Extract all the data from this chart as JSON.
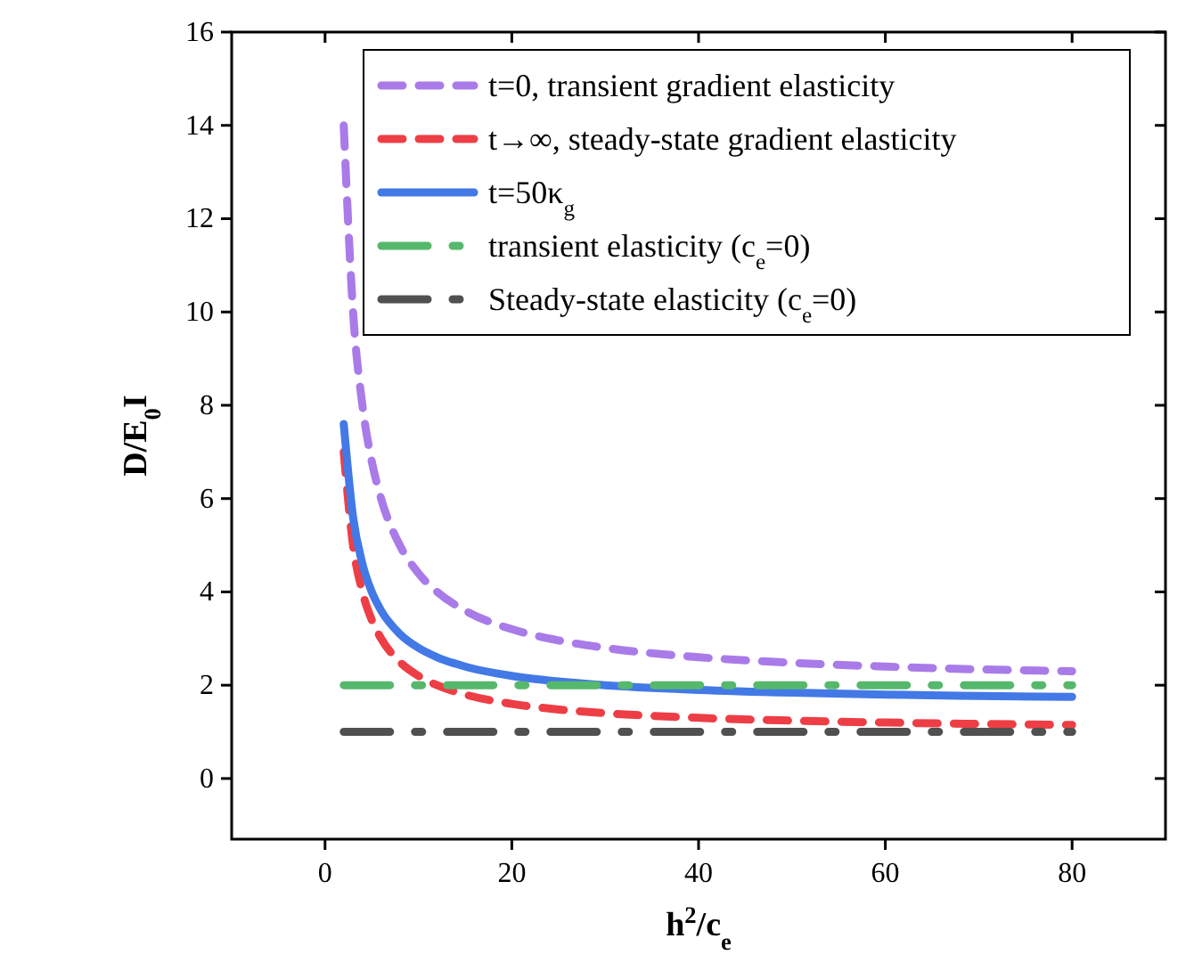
{
  "chart_data": {
    "type": "line",
    "xlabel": "h$^{2}$/c$_{e}$",
    "ylabel": "D/E$_{0}$I",
    "xlim": [
      -10,
      90
    ],
    "ylim": [
      -1.3,
      16
    ],
    "xticks": [
      0,
      20,
      40,
      60,
      80
    ],
    "yticks": [
      0,
      2,
      4,
      6,
      8,
      10,
      12,
      14,
      16
    ],
    "x": [
      2,
      3,
      4,
      5,
      6,
      8,
      10,
      12,
      15,
      20,
      25,
      30,
      40,
      50,
      60,
      70,
      80
    ],
    "legend": "top right",
    "grid": false,
    "series": [
      {
        "name": "t=0, transient gradient elasticity",
        "color": "#a97be8",
        "line_style": "dashed",
        "values": [
          14,
          10,
          8,
          6.8,
          6,
          5,
          4.4,
          4,
          3.6,
          3.2,
          2.96,
          2.8,
          2.6,
          2.48,
          2.4,
          2.34,
          2.3
        ]
      },
      {
        "name": "t→∞, steady-state gradient elasticity",
        "color": "#ee3e45",
        "line_style": "dashed",
        "values": [
          7,
          5,
          4,
          3.4,
          3,
          2.5,
          2.2,
          2,
          1.8,
          1.6,
          1.48,
          1.4,
          1.3,
          1.24,
          1.2,
          1.17,
          1.15
        ]
      },
      {
        "name": "t=50κ$_{g}$",
        "color": "#4379e6",
        "line_style": "solid",
        "values": [
          7.6,
          5.6,
          4.6,
          4,
          3.6,
          3.1,
          2.8,
          2.6,
          2.4,
          2.2,
          2.08,
          2,
          1.9,
          1.84,
          1.8,
          1.77,
          1.75
        ]
      },
      {
        "name": "transient elasticity (c$_{e}$=0)",
        "color": "#56b86c",
        "line_style": "dashdot",
        "values": [
          2,
          2,
          2,
          2,
          2,
          2,
          2,
          2,
          2,
          2,
          2,
          2,
          2,
          2,
          2,
          2,
          2
        ]
      },
      {
        "name": "Steady-state elasticity (c$_{e}$=0)",
        "color": "#505050",
        "line_style": "dashdot",
        "values": [
          1,
          1,
          1,
          1,
          1,
          1,
          1,
          1,
          1,
          1,
          1,
          1,
          1,
          1,
          1,
          1,
          1
        ]
      }
    ]
  }
}
